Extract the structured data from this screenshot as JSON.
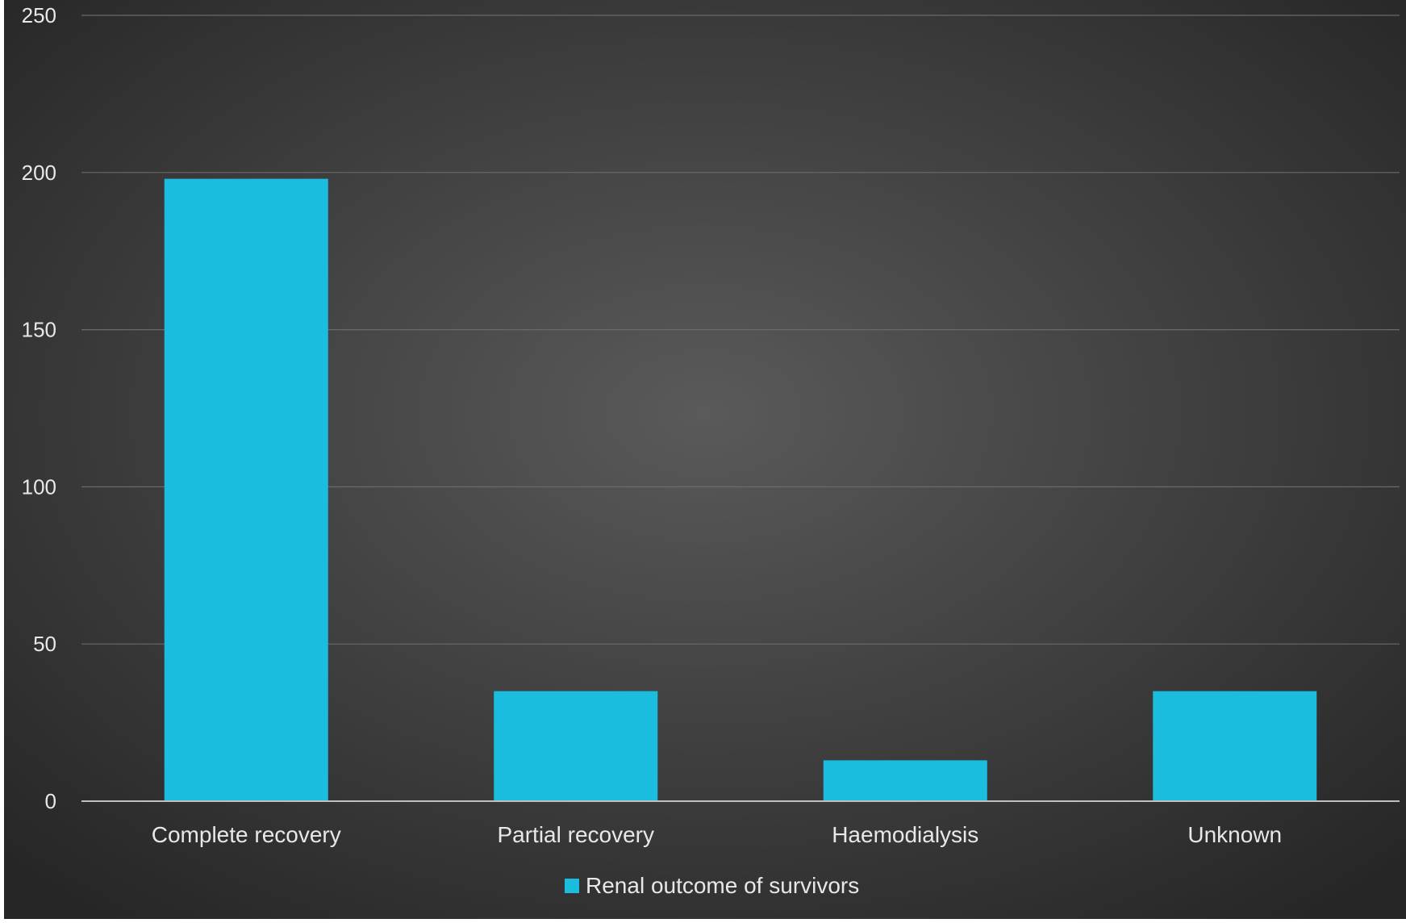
{
  "chart_data": {
    "type": "bar",
    "categories": [
      "Complete recovery",
      "Partial recovery",
      "Haemodialysis",
      "Unknown"
    ],
    "series": [
      {
        "name": "Renal outcome of survivors",
        "values": [
          198,
          35,
          13,
          35
        ]
      }
    ],
    "title": "",
    "xlabel": "",
    "ylabel": "",
    "ylim": [
      0,
      250
    ],
    "yticks": [
      "0",
      "50",
      "100",
      "150",
      "200",
      "250"
    ],
    "grid": true,
    "legend_position": "bottom-center"
  },
  "colors": {
    "bar": "#1ABDDD",
    "background_center": "#5A5A5A",
    "background_edge": "#262626",
    "text": "#E8E8E8",
    "gridline": "#6A6A6A",
    "axis_line": "#BFBFBF"
  }
}
